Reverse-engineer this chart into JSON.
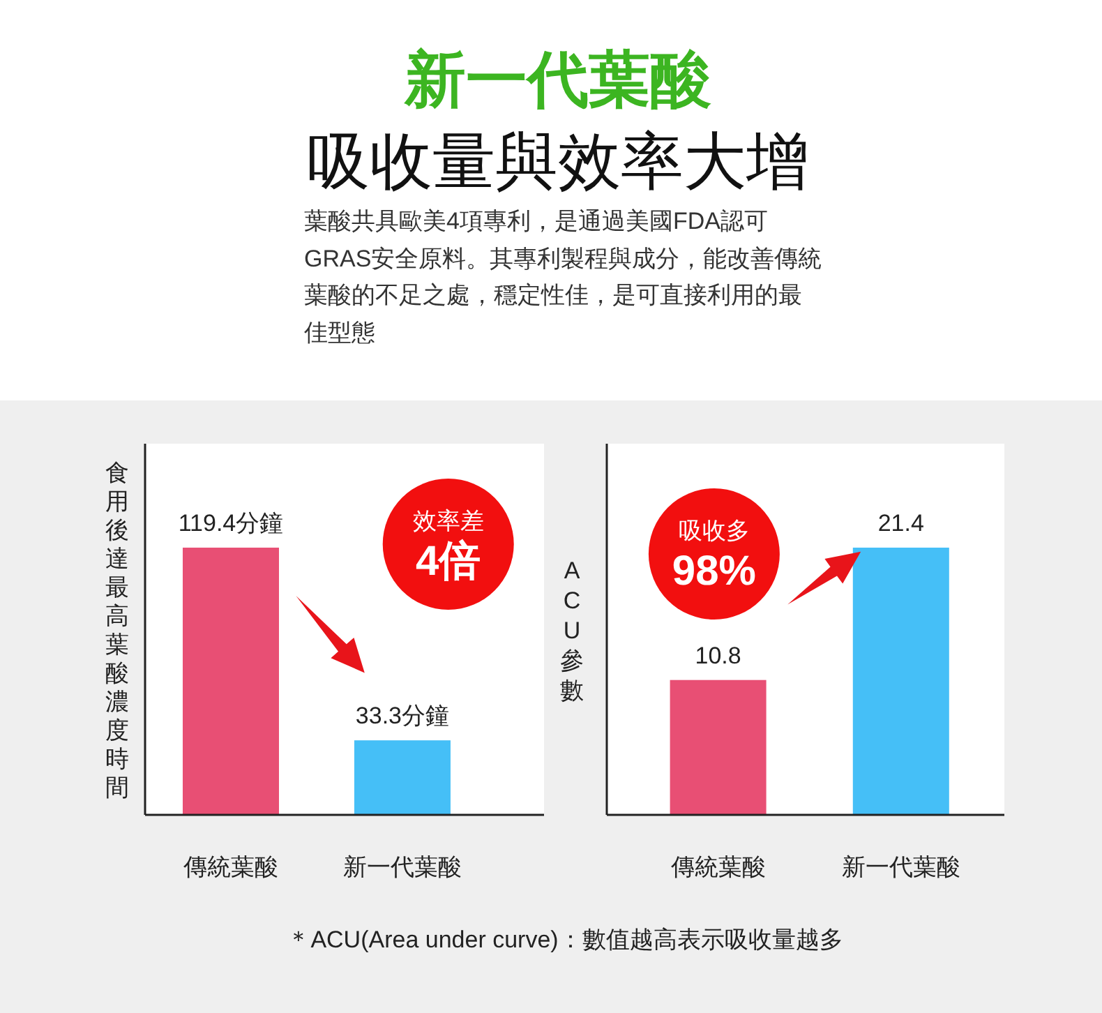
{
  "chart_data": [
    {
      "type": "other",
      "title": "新一代葉酸",
      "subtitle": "吸收量與效率大增",
      "annotations": [
        "葉酸共具歐美4項專利，是通過美國FDA認可GRAS安全原料。其專利製程與成分，能改善傳統葉酸的不足之處，穩定性佳，是可直接利用的最佳型態"
      ]
    },
    {
      "type": "bar",
      "ylabel": "食用後達最高葉酸濃度時間",
      "categories": [
        "傳統葉酸",
        "新一代葉酸"
      ],
      "values": [
        119.4,
        33.3
      ],
      "colors": [
        "#e84f74",
        "#45bff7"
      ],
      "value_labels": [
        "119.4分鐘",
        "33.3分鐘"
      ],
      "annotations": [
        "效率差",
        "4倍"
      ]
    },
    {
      "type": "bar",
      "ylabel": "ACU參數",
      "categories": [
        "傳統葉酸",
        "新一代葉酸"
      ],
      "values": [
        10.8,
        21.4
      ],
      "colors": [
        "#e84f74",
        "#45bff7"
      ],
      "data_labels": true,
      "annotations": [
        "吸收多",
        "98%",
        "＊ACU(Area under curve)：數值越高表示吸收量越多"
      ]
    }
  ]
}
